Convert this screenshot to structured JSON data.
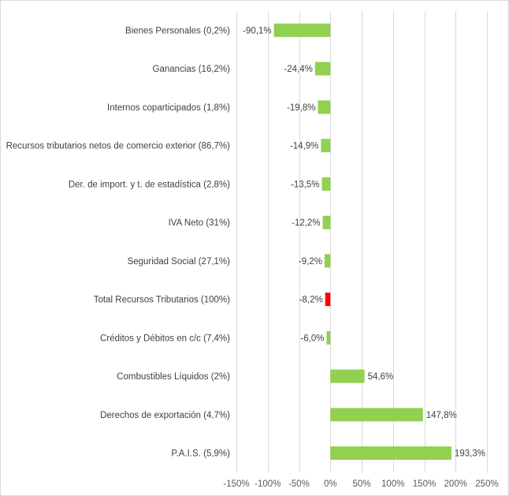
{
  "chart_data": {
    "type": "bar",
    "orientation": "horizontal",
    "title": "",
    "xlabel": "",
    "ylabel": "",
    "xlim": [
      -150,
      250
    ],
    "x_ticks": [
      -150,
      -100,
      -50,
      0,
      50,
      100,
      150,
      200,
      250
    ],
    "x_tick_labels": [
      "-150%",
      "-100%",
      "-50%",
      "0%",
      "50%",
      "100%",
      "150%",
      "200%",
      "250%"
    ],
    "grid": "vertical",
    "legend": "none",
    "categories": [
      "Bienes Personales (0,2%)",
      "Ganancias (16,2%)",
      "Internos coparticipados (1,8%)",
      "Recursos tributarios netos de comercio exterior (86,7%)",
      "Der. de import. y t. de estadística (2,8%)",
      "IVA Neto (31%)",
      "Seguridad Social (27,1%)",
      "Total Recursos Tributarios (100%)",
      "Créditos y Débitos en c/c (7,4%)",
      "Combustibles Líquidos (2%)",
      "Derechos de exportación (4,7%)",
      "P.A.I.S. (5,9%)"
    ],
    "values": [
      -90.1,
      -24.4,
      -19.8,
      -14.9,
      -13.5,
      -12.2,
      -9.2,
      -8.2,
      -6.0,
      54.6,
      147.8,
      193.3
    ],
    "data_labels": [
      "-90,1%",
      "-24,4%",
      "-19,8%",
      "-14,9%",
      "-13,5%",
      "-12,2%",
      "-9,2%",
      "-8,2%",
      "-6,0%",
      "54,6%",
      "147,8%",
      "193,3%"
    ],
    "colors": [
      "#92d050",
      "#92d050",
      "#92d050",
      "#92d050",
      "#92d050",
      "#92d050",
      "#92d050",
      "#ff0000",
      "#92d050",
      "#92d050",
      "#92d050",
      "#92d050"
    ],
    "gridline_color": "#d9d9d9"
  }
}
